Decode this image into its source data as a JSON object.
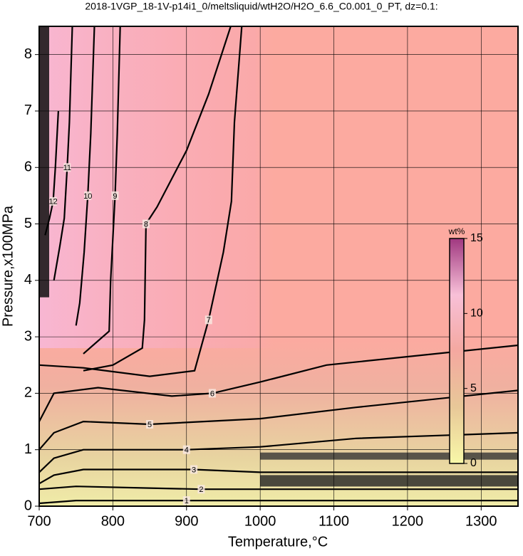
{
  "chart_data": {
    "type": "contour",
    "title": "2018-1VGP_18-1V-p14i1_0/meltsliquid/wtH2O/H2O_6.6_C0.001_0_PT, dz=0.1:",
    "x_label": "Temperature,°C",
    "y_label": "Pressure,x100MPa",
    "xlim": [
      700,
      1350
    ],
    "ylim": [
      0,
      8.5
    ],
    "xticks": [
      700,
      800,
      900,
      1000,
      1100,
      1200,
      1300
    ],
    "yticks": [
      0,
      1,
      2,
      3,
      4,
      5,
      6,
      7,
      8
    ],
    "grid": true,
    "colorbar": {
      "label": "wt%",
      "lim": [
        0,
        15
      ],
      "ticks": [
        0,
        5,
        10,
        15
      ],
      "colors": [
        "#f8f8a8",
        "#e8c898",
        "#f4a8a0",
        "#f8c0d8",
        "#a03880"
      ]
    },
    "contours": [
      {
        "level": 1,
        "x": [
          700,
          750,
          900,
          1100,
          1350
        ],
        "y": [
          0.05,
          0.1,
          0.1,
          0.1,
          0.1
        ]
      },
      {
        "level": 2,
        "x": [
          700,
          750,
          850,
          920,
          1000,
          1350
        ],
        "y": [
          0.3,
          0.35,
          0.32,
          0.3,
          0.3,
          0.3
        ]
      },
      {
        "level": 3,
        "x": [
          700,
          720,
          760,
          910,
          1000,
          1350
        ],
        "y": [
          0.4,
          0.55,
          0.65,
          0.65,
          0.6,
          0.6
        ]
      },
      {
        "level": 4,
        "x": [
          700,
          720,
          760,
          900,
          1000,
          1130,
          1350
        ],
        "y": [
          0.6,
          0.85,
          1.0,
          1.0,
          1.05,
          1.2,
          1.3
        ]
      },
      {
        "level": 5,
        "x": [
          700,
          720,
          760,
          850,
          1000,
          1130,
          1350
        ],
        "y": [
          1.0,
          1.3,
          1.5,
          1.45,
          1.55,
          1.75,
          2.05
        ]
      },
      {
        "level": 6,
        "x": [
          700,
          720,
          780,
          880,
          935,
          1000,
          1090,
          1350
        ],
        "y": [
          1.5,
          2.0,
          2.1,
          1.95,
          2.0,
          2.2,
          2.5,
          2.85
        ]
      },
      {
        "level": 7,
        "x": [
          700,
          760,
          850,
          911,
          930,
          950,
          961,
          965,
          975
        ],
        "y": [
          2.5,
          2.45,
          2.3,
          2.4,
          3.3,
          4.5,
          5.4,
          6.8,
          8.5
        ]
      },
      {
        "level": 8,
        "x": [
          760,
          800,
          840,
          843,
          845,
          860,
          900,
          930,
          960
        ],
        "y": [
          2.4,
          2.5,
          2.8,
          3.3,
          5.0,
          5.3,
          6.3,
          7.3,
          8.5
        ]
      },
      {
        "level": 9,
        "x": [
          760,
          795,
          797,
          803,
          806,
          810
        ],
        "y": [
          2.7,
          3.1,
          4.0,
          5.5,
          6.6,
          8.5
        ]
      },
      {
        "level": 10,
        "x": [
          750,
          755,
          761,
          766,
          770,
          775
        ],
        "y": [
          3.2,
          3.6,
          4.5,
          5.5,
          6.6,
          8.5
        ]
      },
      {
        "level": 11,
        "x": [
          720,
          728,
          734,
          738,
          741,
          745
        ],
        "y": [
          4.0,
          4.6,
          5.1,
          6.0,
          6.8,
          8.5
        ]
      },
      {
        "level": 12,
        "x": [
          708,
          714,
          719,
          722,
          726
        ],
        "y": [
          4.8,
          5.1,
          5.4,
          6.0,
          7.0
        ]
      }
    ]
  }
}
